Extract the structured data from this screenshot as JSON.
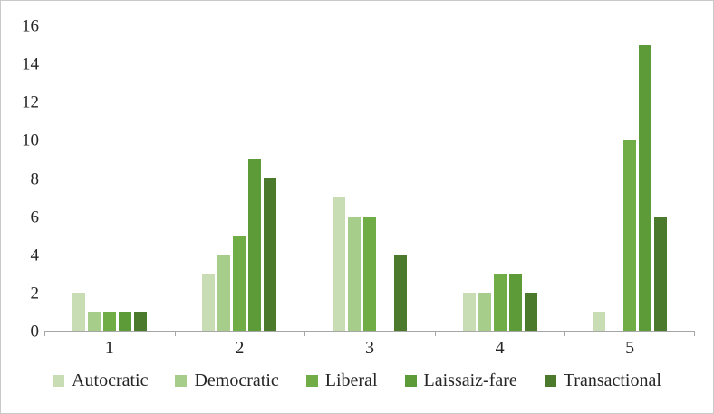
{
  "chart_data": {
    "type": "bar",
    "categories": [
      "1",
      "2",
      "3",
      "4",
      "5"
    ],
    "series": [
      {
        "name": "Autocratic",
        "color": "#c9ddb5",
        "values": [
          2,
          3,
          7,
          2,
          1
        ]
      },
      {
        "name": "Democratic",
        "color": "#a6cd8a",
        "values": [
          1,
          4,
          6,
          2,
          0
        ]
      },
      {
        "name": "Liberal",
        "color": "#70ad47",
        "values": [
          1,
          5,
          6,
          3,
          10
        ]
      },
      {
        "name": "Laissaiz-fare",
        "color": "#5d9b38",
        "values": [
          1,
          9,
          0,
          3,
          15
        ]
      },
      {
        "name": "Transactional",
        "color": "#4c7a2d",
        "values": [
          1,
          8,
          4,
          2,
          6
        ]
      }
    ],
    "title": "",
    "xlabel": "",
    "ylabel": "",
    "ylim": [
      0,
      16
    ],
    "yticks": [
      0,
      2,
      4,
      6,
      8,
      10,
      12,
      14,
      16
    ],
    "grid": false,
    "legend_position": "bottom",
    "axis_color": "#a6a6a6",
    "text_color": "#262626"
  }
}
